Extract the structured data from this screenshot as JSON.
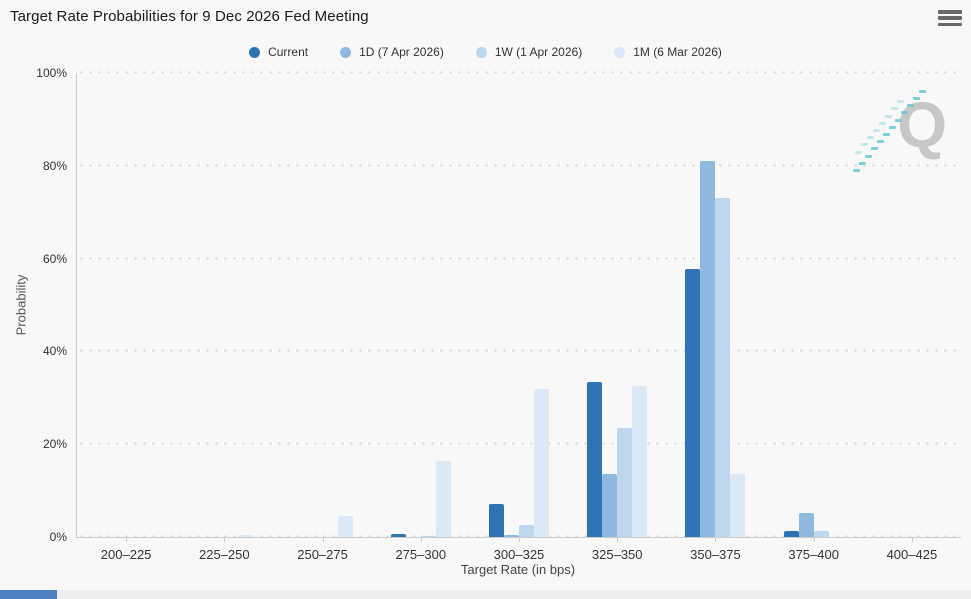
{
  "header": {
    "title": "Target Rate Probabilities for 9 Dec 2026 Fed Meeting"
  },
  "chart_data": {
    "type": "bar",
    "title": "Target Rate Probabilities for 9 Dec 2026 Fed Meeting",
    "xlabel": "Target Rate (in bps)",
    "ylabel": "Probability",
    "ylim": [
      0,
      100
    ],
    "ytick_labels": [
      "0%",
      "20%",
      "40%",
      "60%",
      "80%",
      "100%"
    ],
    "grid": "dotted-horizontal",
    "legend_position": "top-center",
    "categories": [
      "200–225",
      "225–250",
      "250–275",
      "275–300",
      "300–325",
      "325–350",
      "350–375",
      "375–400",
      "400–425"
    ],
    "series": [
      {
        "name": "Current",
        "color": "#2e73b4",
        "values": [
          0,
          0,
          0,
          0.7,
          7.2,
          33.5,
          57.7,
          1.2,
          0
        ]
      },
      {
        "name": "1D (7 Apr 2026)",
        "color": "#8fb8de",
        "values": [
          0,
          0,
          0,
          0,
          0.5,
          13.5,
          81,
          5.1,
          0
        ]
      },
      {
        "name": "1W (1 Apr 2026)",
        "color": "#bdd7ee",
        "values": [
          0,
          0,
          0,
          0.3,
          2.5,
          23.5,
          73,
          1.2,
          0
        ]
      },
      {
        "name": "1M (6 Mar 2026)",
        "color": "#dbe8f6",
        "values": [
          0,
          0.5,
          4.5,
          16.4,
          32,
          32.5,
          13.5,
          0,
          0
        ]
      }
    ]
  },
  "watermark": {
    "letter": "Q",
    "letter_color": "#c7c7c7",
    "stripe_color": "#66c9d4"
  },
  "colors": {
    "background": "#f8f8f8",
    "axis_line": "#cccccc",
    "grid_dot": "#d6d6d6",
    "text": "#333333",
    "scrollbar_thumb": "#4b80c2",
    "scrollbar_track": "#ededed"
  }
}
